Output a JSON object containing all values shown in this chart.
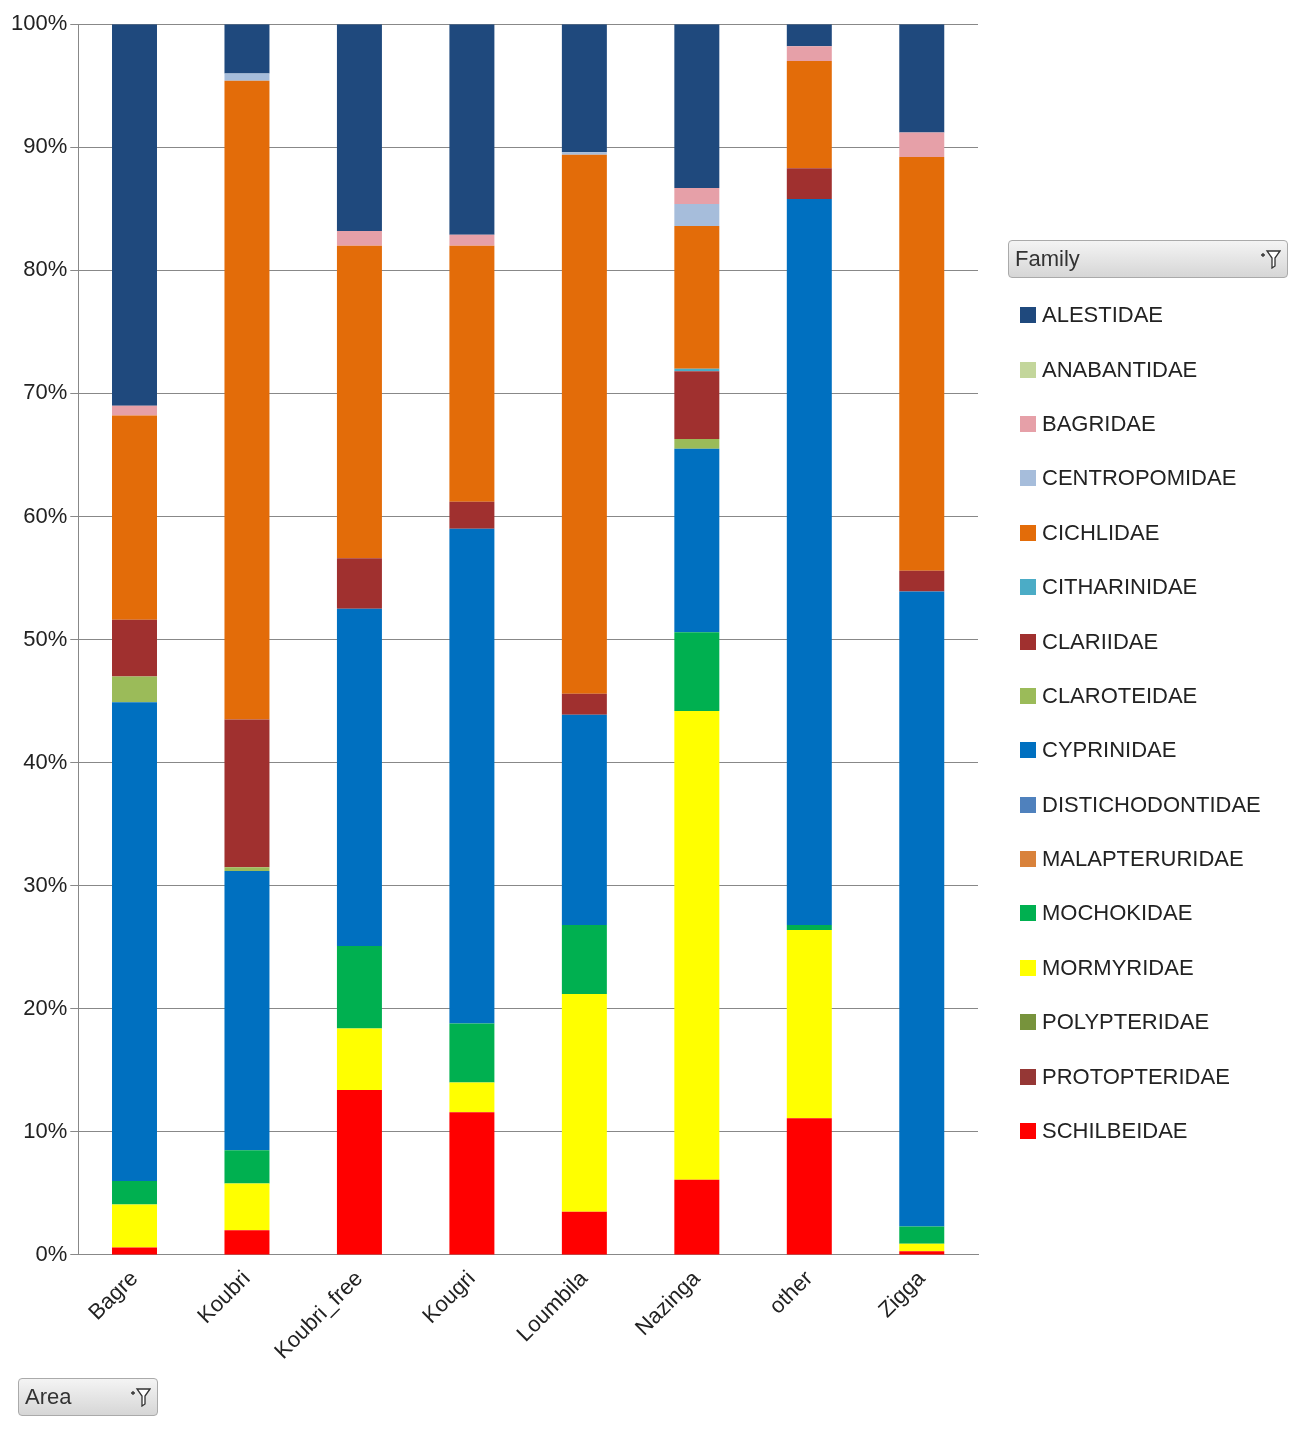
{
  "chart_data": {
    "type": "bar",
    "stacked": true,
    "xlabel": "Area",
    "legend_title": "Family",
    "legend": "right",
    "grid": "y",
    "categories": [
      "Bagre",
      "Koubri",
      "Koubri_free",
      "Kougri",
      "Loumbila",
      "Nazinga",
      "other",
      "Zigga"
    ],
    "ylim": [
      0,
      100
    ],
    "yticks": [
      {
        "value": 0,
        "label": "0%"
      },
      {
        "value": 10,
        "label": "10%"
      },
      {
        "value": 20,
        "label": "20%"
      },
      {
        "value": 30,
        "label": "30%"
      },
      {
        "value": 40,
        "label": "40%"
      },
      {
        "value": 50,
        "label": "50%"
      },
      {
        "value": 60,
        "label": "60%"
      },
      {
        "value": 70,
        "label": "70%"
      },
      {
        "value": 80,
        "label": "80%"
      },
      {
        "value": 90,
        "label": "90%"
      },
      {
        "value": 100,
        "label": "100%"
      }
    ],
    "series": [
      {
        "name": "SCHILBEIDAE",
        "color": "#ff0000",
        "values": [
          0.6,
          2.0,
          13.4,
          11.6,
          3.5,
          6.1,
          11.1,
          0.3
        ]
      },
      {
        "name": "PROTOPTERIDAE",
        "color": "#953735",
        "values": [
          0,
          0,
          0,
          0,
          0,
          0,
          0,
          0
        ]
      },
      {
        "name": "POLYPTERIDAE",
        "color": "#77933c",
        "values": [
          0,
          0,
          0,
          0,
          0,
          0,
          0,
          0
        ]
      },
      {
        "name": "MORMYRIDAE",
        "color": "#ffff00",
        "values": [
          3.5,
          3.8,
          5.0,
          2.4,
          17.7,
          38.1,
          15.3,
          0.6
        ]
      },
      {
        "name": "MOCHOKIDAE",
        "color": "#00b050",
        "values": [
          1.9,
          2.7,
          6.7,
          4.8,
          5.6,
          6.4,
          0.4,
          1.4
        ]
      },
      {
        "name": "MALAPTERURIDAE",
        "color": "#d9823b",
        "values": [
          0,
          0,
          0,
          0,
          0,
          0,
          0,
          0
        ]
      },
      {
        "name": "DISTICHODONTIDAE",
        "color": "#4f81bd",
        "values": [
          0,
          0,
          0,
          0,
          0,
          0,
          0,
          0
        ]
      },
      {
        "name": "CYPRINIDAE",
        "color": "#0070c0",
        "values": [
          38.9,
          22.7,
          27.4,
          40.2,
          17.1,
          14.9,
          59.0,
          51.6
        ]
      },
      {
        "name": "CLAROTEIDAE",
        "color": "#9bbb59",
        "values": [
          2.1,
          0.3,
          0,
          0,
          0,
          0.8,
          0,
          0
        ]
      },
      {
        "name": "CLARIIDAE",
        "color": "#a0302f",
        "values": [
          4.6,
          12.0,
          4.1,
          2.2,
          1.7,
          5.5,
          2.5,
          1.7
        ]
      },
      {
        "name": "CITHARINIDAE",
        "color": "#4bacc6",
        "values": [
          0,
          0,
          0,
          0,
          0,
          0.2,
          0,
          0
        ]
      },
      {
        "name": "CICHLIDAE",
        "color": "#e36c09",
        "values": [
          16.6,
          51.9,
          25.4,
          20.8,
          43.8,
          11.6,
          8.7,
          33.6
        ]
      },
      {
        "name": "CENTROPOMIDAE",
        "color": "#a6bddb",
        "values": [
          0,
          0.6,
          0,
          0,
          0.2,
          1.8,
          0,
          0
        ]
      },
      {
        "name": "BAGRIDAE",
        "color": "#e6a0a8",
        "values": [
          0.8,
          0,
          1.2,
          0.9,
          0,
          1.3,
          1.2,
          2.0
        ]
      },
      {
        "name": "ANABANTIDAE",
        "color": "#c3d69b",
        "values": [
          0,
          0,
          0,
          0,
          0,
          0,
          0,
          0
        ]
      },
      {
        "name": "ALESTIDAE",
        "color": "#1f497d",
        "values": [
          31.0,
          4.0,
          16.8,
          17.1,
          10.4,
          13.3,
          1.8,
          8.8
        ]
      }
    ]
  }
}
